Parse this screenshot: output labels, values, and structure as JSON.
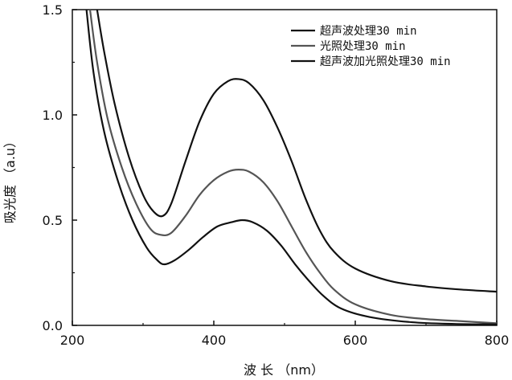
{
  "chart_data": {
    "type": "line",
    "xlabel": "波 长 （nm）",
    "ylabel": "吸光度 （a.u）",
    "xlim": [
      200,
      800
    ],
    "ylim": [
      0.0,
      1.5
    ],
    "xticks": [
      200,
      400,
      600,
      800
    ],
    "yticks": [
      0.0,
      0.5,
      1.0,
      1.5
    ],
    "x_tick_labels": [
      "200",
      "400",
      "600",
      "800"
    ],
    "y_tick_labels": [
      "0.0",
      "0.5",
      "1.0",
      "1.5"
    ],
    "grid": false,
    "legend_position": "top-right",
    "series": [
      {
        "name": "超声波处理30 min",
        "color": "#111111",
        "points": [
          [
            235,
            1.5
          ],
          [
            245,
            1.3
          ],
          [
            260,
            1.05
          ],
          [
            280,
            0.8
          ],
          [
            300,
            0.62
          ],
          [
            315,
            0.54
          ],
          [
            328,
            0.52
          ],
          [
            340,
            0.58
          ],
          [
            360,
            0.78
          ],
          [
            380,
            0.97
          ],
          [
            400,
            1.1
          ],
          [
            420,
            1.16
          ],
          [
            435,
            1.17
          ],
          [
            450,
            1.15
          ],
          [
            470,
            1.07
          ],
          [
            490,
            0.94
          ],
          [
            510,
            0.78
          ],
          [
            530,
            0.6
          ],
          [
            550,
            0.45
          ],
          [
            570,
            0.35
          ],
          [
            600,
            0.27
          ],
          [
            650,
            0.21
          ],
          [
            700,
            0.185
          ],
          [
            750,
            0.17
          ],
          [
            800,
            0.16
          ]
        ]
      },
      {
        "name": "光照处理30 min",
        "color": "#555555",
        "points": [
          [
            225,
            1.5
          ],
          [
            235,
            1.25
          ],
          [
            250,
            0.98
          ],
          [
            270,
            0.75
          ],
          [
            290,
            0.58
          ],
          [
            310,
            0.46
          ],
          [
            325,
            0.43
          ],
          [
            340,
            0.44
          ],
          [
            360,
            0.52
          ],
          [
            380,
            0.62
          ],
          [
            400,
            0.69
          ],
          [
            420,
            0.73
          ],
          [
            435,
            0.74
          ],
          [
            450,
            0.73
          ],
          [
            470,
            0.68
          ],
          [
            490,
            0.59
          ],
          [
            510,
            0.47
          ],
          [
            530,
            0.35
          ],
          [
            550,
            0.25
          ],
          [
            570,
            0.17
          ],
          [
            600,
            0.1
          ],
          [
            650,
            0.05
          ],
          [
            700,
            0.03
          ],
          [
            750,
            0.02
          ],
          [
            800,
            0.01
          ]
        ]
      },
      {
        "name": "超声波加光照处理30 min",
        "color": "#111111",
        "points": [
          [
            220,
            1.5
          ],
          [
            230,
            1.2
          ],
          [
            245,
            0.92
          ],
          [
            265,
            0.68
          ],
          [
            285,
            0.5
          ],
          [
            305,
            0.37
          ],
          [
            320,
            0.31
          ],
          [
            330,
            0.29
          ],
          [
            345,
            0.31
          ],
          [
            365,
            0.36
          ],
          [
            385,
            0.42
          ],
          [
            405,
            0.47
          ],
          [
            425,
            0.49
          ],
          [
            440,
            0.5
          ],
          [
            455,
            0.49
          ],
          [
            475,
            0.45
          ],
          [
            495,
            0.38
          ],
          [
            515,
            0.29
          ],
          [
            535,
            0.21
          ],
          [
            555,
            0.14
          ],
          [
            580,
            0.08
          ],
          [
            620,
            0.04
          ],
          [
            680,
            0.015
          ],
          [
            740,
            0.007
          ],
          [
            800,
            0.005
          ]
        ]
      }
    ]
  }
}
